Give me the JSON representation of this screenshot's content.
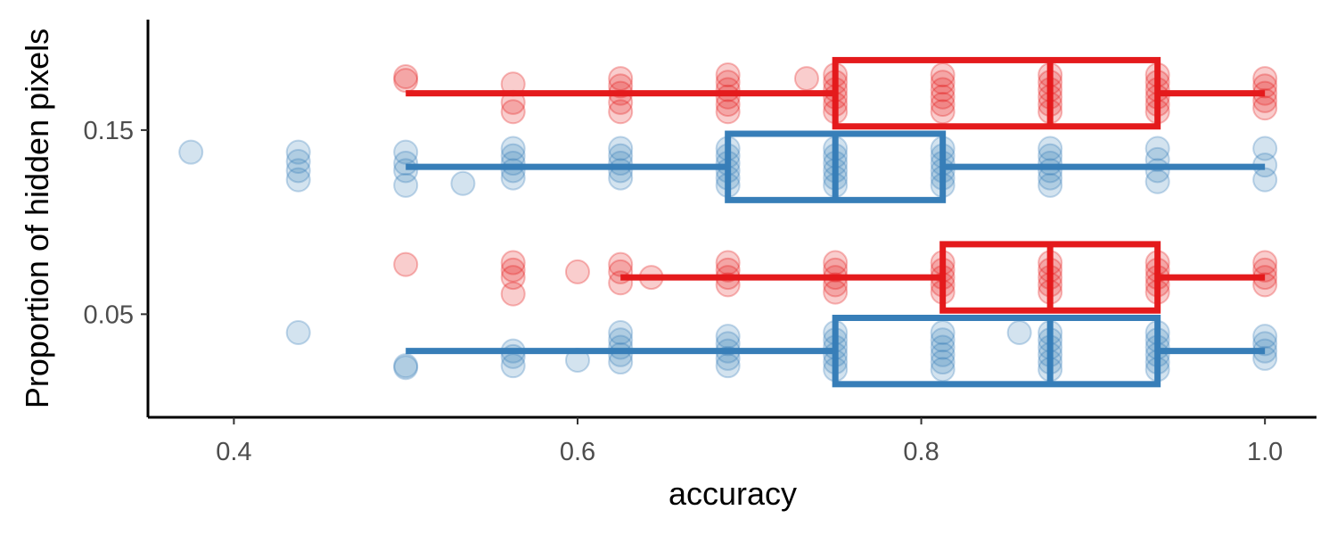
{
  "chart_data": {
    "type": "boxplot",
    "orientation": "horizontal",
    "xlabel": "accuracy",
    "ylabel": "Proportion of hidden pixels",
    "xlim": [
      0.35,
      1.03
    ],
    "ylim": [
      -0.006,
      0.21
    ],
    "x_ticks": [
      0.4,
      0.6,
      0.8,
      1.0
    ],
    "x_tick_labels": [
      "0.4",
      "0.6",
      "0.8",
      "1.0"
    ],
    "y_ticks": [
      0.05,
      0.15
    ],
    "y_tick_labels": [
      "0.05",
      "0.15"
    ],
    "grid": false,
    "legend": "none",
    "groups": [
      {
        "color": "#E41A1C",
        "y": 0.17,
        "min": 0.5,
        "q1": 0.75,
        "median": 0.875,
        "q3": 0.9375,
        "max": 1.0,
        "points": [
          [
            0.5,
            0.179
          ],
          [
            0.5,
            0.177
          ],
          [
            0.5625,
            0.175
          ],
          [
            0.5625,
            0.165
          ],
          [
            0.5625,
            0.16
          ],
          [
            0.625,
            0.178
          ],
          [
            0.625,
            0.174
          ],
          [
            0.625,
            0.17
          ],
          [
            0.625,
            0.165
          ],
          [
            0.625,
            0.16
          ],
          [
            0.6875,
            0.18
          ],
          [
            0.6875,
            0.176
          ],
          [
            0.6875,
            0.172
          ],
          [
            0.6875,
            0.168
          ],
          [
            0.6875,
            0.164
          ],
          [
            0.6875,
            0.16
          ],
          [
            0.7333,
            0.178
          ],
          [
            0.75,
            0.18
          ],
          [
            0.75,
            0.176
          ],
          [
            0.75,
            0.172
          ],
          [
            0.75,
            0.168
          ],
          [
            0.75,
            0.164
          ],
          [
            0.75,
            0.16
          ],
          [
            0.8125,
            0.18
          ],
          [
            0.8125,
            0.176
          ],
          [
            0.8125,
            0.172
          ],
          [
            0.8125,
            0.168
          ],
          [
            0.8125,
            0.164
          ],
          [
            0.8125,
            0.16
          ],
          [
            0.875,
            0.18
          ],
          [
            0.875,
            0.176
          ],
          [
            0.875,
            0.172
          ],
          [
            0.875,
            0.168
          ],
          [
            0.875,
            0.164
          ],
          [
            0.875,
            0.16
          ],
          [
            0.9375,
            0.18
          ],
          [
            0.9375,
            0.176
          ],
          [
            0.9375,
            0.172
          ],
          [
            0.9375,
            0.168
          ],
          [
            0.9375,
            0.164
          ],
          [
            0.9375,
            0.16
          ],
          [
            1.0,
            0.178
          ],
          [
            1.0,
            0.174
          ],
          [
            1.0,
            0.17
          ],
          [
            1.0,
            0.166
          ],
          [
            1.0,
            0.162
          ]
        ]
      },
      {
        "color": "#377EB8",
        "y": 0.13,
        "min": 0.5,
        "q1": 0.6875,
        "median": 0.75,
        "q3": 0.8125,
        "max": 1.0,
        "points": [
          [
            0.375,
            0.138
          ],
          [
            0.4375,
            0.138
          ],
          [
            0.4375,
            0.133
          ],
          [
            0.4375,
            0.128
          ],
          [
            0.4375,
            0.123
          ],
          [
            0.5,
            0.138
          ],
          [
            0.5,
            0.132
          ],
          [
            0.5,
            0.128
          ],
          [
            0.5,
            0.12
          ],
          [
            0.5333,
            0.121
          ],
          [
            0.5625,
            0.14
          ],
          [
            0.5625,
            0.136
          ],
          [
            0.5625,
            0.132
          ],
          [
            0.5625,
            0.128
          ],
          [
            0.5625,
            0.124
          ],
          [
            0.625,
            0.14
          ],
          [
            0.625,
            0.136
          ],
          [
            0.625,
            0.132
          ],
          [
            0.625,
            0.128
          ],
          [
            0.625,
            0.124
          ],
          [
            0.6875,
            0.14
          ],
          [
            0.6875,
            0.136
          ],
          [
            0.6875,
            0.132
          ],
          [
            0.6875,
            0.128
          ],
          [
            0.6875,
            0.124
          ],
          [
            0.6875,
            0.12
          ],
          [
            0.75,
            0.14
          ],
          [
            0.75,
            0.136
          ],
          [
            0.75,
            0.132
          ],
          [
            0.75,
            0.128
          ],
          [
            0.75,
            0.124
          ],
          [
            0.75,
            0.12
          ],
          [
            0.8125,
            0.14
          ],
          [
            0.8125,
            0.136
          ],
          [
            0.8125,
            0.132
          ],
          [
            0.8125,
            0.128
          ],
          [
            0.8125,
            0.124
          ],
          [
            0.8125,
            0.12
          ],
          [
            0.875,
            0.14
          ],
          [
            0.875,
            0.136
          ],
          [
            0.875,
            0.132
          ],
          [
            0.875,
            0.128
          ],
          [
            0.875,
            0.124
          ],
          [
            0.875,
            0.12
          ],
          [
            0.9375,
            0.14
          ],
          [
            0.9375,
            0.134
          ],
          [
            0.9375,
            0.128
          ],
          [
            0.9375,
            0.122
          ],
          [
            1.0,
            0.14
          ],
          [
            1.0,
            0.131
          ],
          [
            1.0,
            0.123
          ]
        ]
      },
      {
        "color": "#E41A1C",
        "y": 0.07,
        "min": 0.625,
        "q1": 0.8125,
        "median": 0.875,
        "q3": 0.9375,
        "max": 1.0,
        "points": [
          [
            0.5,
            0.077
          ],
          [
            0.5625,
            0.078
          ],
          [
            0.5625,
            0.074
          ],
          [
            0.5625,
            0.07
          ],
          [
            0.5625,
            0.061
          ],
          [
            0.6,
            0.073
          ],
          [
            0.625,
            0.077
          ],
          [
            0.625,
            0.073
          ],
          [
            0.625,
            0.067
          ],
          [
            0.6429,
            0.07
          ],
          [
            0.6875,
            0.078
          ],
          [
            0.6875,
            0.074
          ],
          [
            0.6875,
            0.07
          ],
          [
            0.6875,
            0.066
          ],
          [
            0.75,
            0.078
          ],
          [
            0.75,
            0.074
          ],
          [
            0.75,
            0.07
          ],
          [
            0.75,
            0.066
          ],
          [
            0.75,
            0.062
          ],
          [
            0.8125,
            0.078
          ],
          [
            0.8125,
            0.074
          ],
          [
            0.8125,
            0.07
          ],
          [
            0.8125,
            0.066
          ],
          [
            0.8125,
            0.062
          ],
          [
            0.875,
            0.078
          ],
          [
            0.875,
            0.074
          ],
          [
            0.875,
            0.07
          ],
          [
            0.875,
            0.066
          ],
          [
            0.875,
            0.062
          ],
          [
            0.9375,
            0.078
          ],
          [
            0.9375,
            0.074
          ],
          [
            0.9375,
            0.07
          ],
          [
            0.9375,
            0.066
          ],
          [
            0.9375,
            0.062
          ],
          [
            1.0,
            0.078
          ],
          [
            1.0,
            0.074
          ],
          [
            1.0,
            0.07
          ],
          [
            1.0,
            0.066
          ]
        ]
      },
      {
        "color": "#377EB8",
        "y": 0.03,
        "min": 0.5,
        "q1": 0.75,
        "median": 0.875,
        "q3": 0.9375,
        "max": 1.0,
        "points": [
          [
            0.4375,
            0.04
          ],
          [
            0.5,
            0.022
          ],
          [
            0.5,
            0.021
          ],
          [
            0.5625,
            0.03
          ],
          [
            0.5625,
            0.027
          ],
          [
            0.5625,
            0.022
          ],
          [
            0.6,
            0.025
          ],
          [
            0.625,
            0.04
          ],
          [
            0.625,
            0.036
          ],
          [
            0.625,
            0.032
          ],
          [
            0.625,
            0.028
          ],
          [
            0.625,
            0.024
          ],
          [
            0.6875,
            0.038
          ],
          [
            0.6875,
            0.034
          ],
          [
            0.6875,
            0.03
          ],
          [
            0.6875,
            0.026
          ],
          [
            0.6875,
            0.022
          ],
          [
            0.75,
            0.04
          ],
          [
            0.75,
            0.036
          ],
          [
            0.75,
            0.032
          ],
          [
            0.75,
            0.028
          ],
          [
            0.75,
            0.024
          ],
          [
            0.75,
            0.02
          ],
          [
            0.8125,
            0.04
          ],
          [
            0.8125,
            0.036
          ],
          [
            0.8125,
            0.032
          ],
          [
            0.8125,
            0.028
          ],
          [
            0.8125,
            0.024
          ],
          [
            0.8125,
            0.02
          ],
          [
            0.8571,
            0.04
          ],
          [
            0.875,
            0.04
          ],
          [
            0.875,
            0.036
          ],
          [
            0.875,
            0.032
          ],
          [
            0.875,
            0.028
          ],
          [
            0.875,
            0.024
          ],
          [
            0.875,
            0.02
          ],
          [
            0.9375,
            0.04
          ],
          [
            0.9375,
            0.036
          ],
          [
            0.9375,
            0.032
          ],
          [
            0.9375,
            0.028
          ],
          [
            0.9375,
            0.024
          ],
          [
            0.9375,
            0.02
          ],
          [
            1.0,
            0.038
          ],
          [
            1.0,
            0.034
          ],
          [
            1.0,
            0.03
          ],
          [
            1.0,
            0.026
          ]
        ]
      }
    ]
  }
}
